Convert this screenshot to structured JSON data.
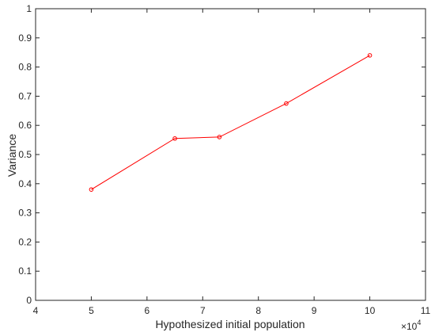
{
  "chart_data": {
    "type": "line",
    "title": "",
    "xlabel": "Hypothesized initial population",
    "ylabel": "Variance",
    "x_exponent_label": "×10",
    "x_exponent": "4",
    "xlim": [
      4,
      11
    ],
    "ylim": [
      0,
      1
    ],
    "x_ticks": [
      "4",
      "5",
      "6",
      "7",
      "8",
      "9",
      "10",
      "11"
    ],
    "y_ticks": [
      "0",
      "0.1",
      "0.2",
      "0.3",
      "0.4",
      "0.5",
      "0.6",
      "0.7",
      "0.8",
      "0.9",
      "1"
    ],
    "grid": false,
    "series": [
      {
        "color": "#ff0000",
        "marker": "circle",
        "x": [
          5,
          6.5,
          7.3,
          8.5,
          10
        ],
        "y": [
          0.38,
          0.555,
          0.56,
          0.675,
          0.84
        ]
      }
    ]
  }
}
